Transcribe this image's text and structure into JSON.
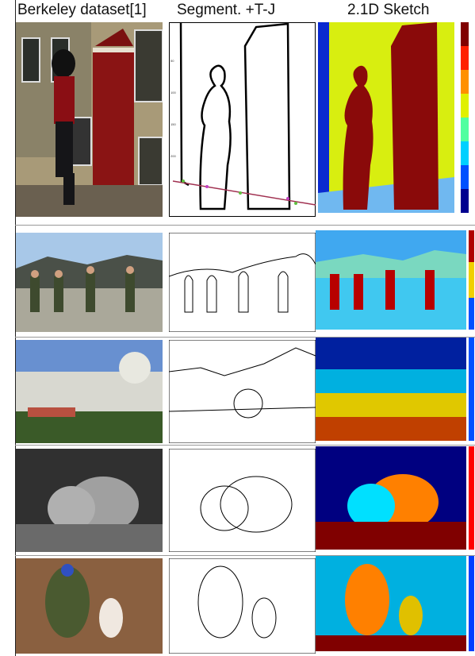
{
  "headers": {
    "col1": "Berkeley dataset[1]",
    "col2": "Segment. +T-J",
    "col3": "2.1D Sketch"
  },
  "colors": {
    "jet_dark_blue": "#00008f",
    "jet_blue": "#0050ff",
    "jet_cyan": "#00e5ff",
    "jet_green_yellow": "#c8f000",
    "jet_yellow": "#ffe800",
    "jet_orange": "#ff8000",
    "jet_red": "#f00000",
    "jet_dark_red": "#800000"
  }
}
